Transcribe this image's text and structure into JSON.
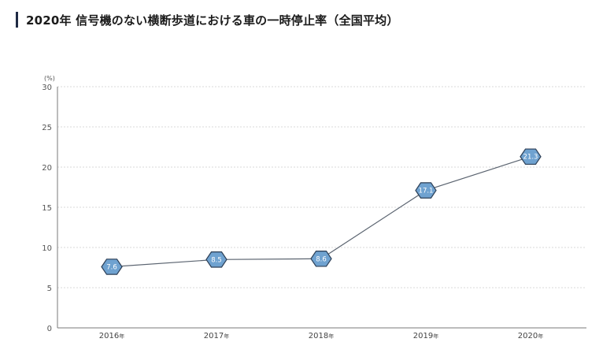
{
  "chart_data": {
    "type": "line",
    "title": "2020年 信号機のない横断歩道における車の一時停止率（全国平均）",
    "unit_label": "(%)",
    "categories": [
      "2016",
      "2017",
      "2018",
      "2019",
      "2020"
    ],
    "category_suffix": "年",
    "values": [
      7.6,
      8.5,
      8.6,
      17.1,
      21.3
    ],
    "data_labels": [
      "7.6",
      "8.5",
      "8.6",
      "17.1",
      "21.3"
    ],
    "ylim": [
      0,
      30
    ],
    "yticks": [
      0,
      5,
      10,
      15,
      20,
      25,
      30
    ],
    "grid": true,
    "legend": "none",
    "colors": {
      "line": "#5b6470",
      "marker_fill": "#6fa2d0",
      "marker_stroke": "#2c3e55",
      "grid": "#d9d9d9",
      "axis": "#7a7a7a",
      "title_bar": "#1f2a44"
    }
  }
}
